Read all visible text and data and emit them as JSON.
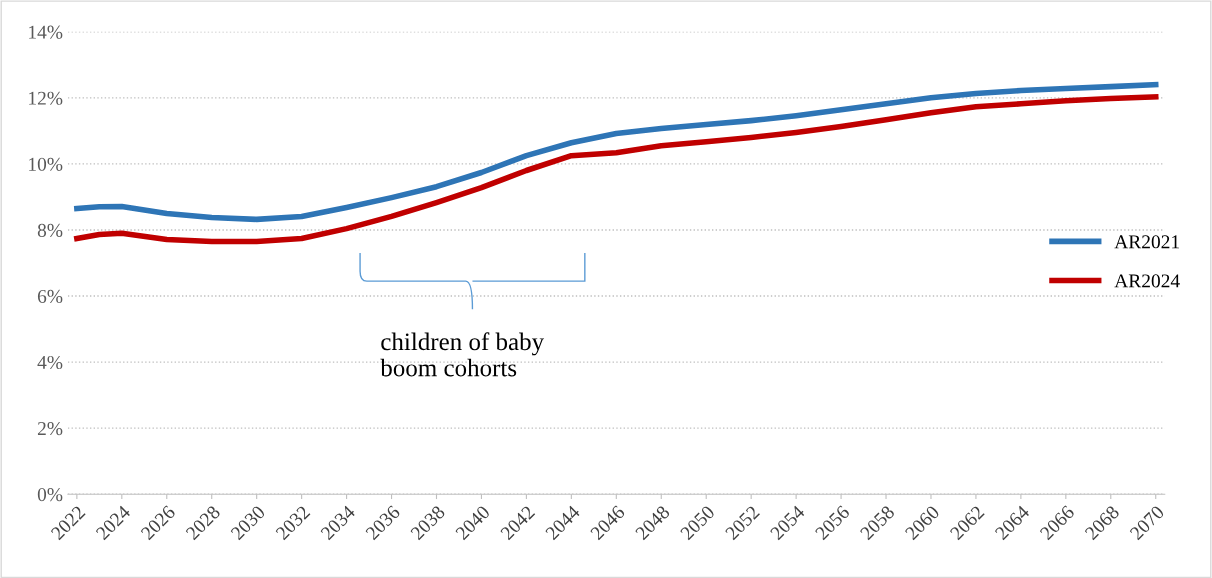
{
  "chart_data": {
    "type": "line",
    "x": [
      2022,
      2023,
      2024,
      2026,
      2028,
      2030,
      2032,
      2034,
      2036,
      2038,
      2040,
      2042,
      2044,
      2046,
      2048,
      2050,
      2052,
      2054,
      2056,
      2058,
      2060,
      2062,
      2064,
      2066,
      2068,
      2070
    ],
    "series": [
      {
        "name": "AR2021",
        "color": "#2e75b6",
        "values": [
          8.65,
          8.7,
          8.71,
          8.5,
          8.38,
          8.32,
          8.41,
          8.68,
          8.98,
          9.31,
          9.74,
          10.25,
          10.64,
          10.92,
          11.07,
          11.19,
          11.31,
          11.46,
          11.64,
          11.82,
          12.0,
          12.13,
          12.22,
          12.28,
          12.34,
          12.4
        ]
      },
      {
        "name": "AR2024",
        "color": "#c00000",
        "values": [
          7.74,
          7.86,
          7.9,
          7.71,
          7.65,
          7.65,
          7.74,
          8.04,
          8.41,
          8.83,
          9.28,
          9.8,
          10.25,
          10.34,
          10.55,
          10.67,
          10.8,
          10.95,
          11.13,
          11.34,
          11.55,
          11.73,
          11.82,
          11.91,
          11.98,
          12.03
        ]
      }
    ],
    "xlim": [
      2021.6,
      2070.4
    ],
    "xticks": [
      2022,
      2024,
      2026,
      2028,
      2030,
      2032,
      2034,
      2036,
      2038,
      2040,
      2042,
      2044,
      2046,
      2048,
      2050,
      2052,
      2054,
      2056,
      2058,
      2060,
      2062,
      2064,
      2066,
      2068,
      2070
    ],
    "ylim": [
      0,
      14
    ],
    "yticks": [
      {
        "value": 0,
        "label": "0%"
      },
      {
        "value": 2,
        "label": "2%"
      },
      {
        "value": 4,
        "label": "4%"
      },
      {
        "value": 6,
        "label": "6%"
      },
      {
        "value": 8,
        "label": "8%"
      },
      {
        "value": 10,
        "label": "10%"
      },
      {
        "value": 12,
        "label": "12%"
      },
      {
        "value": 14,
        "label": "14%"
      }
    ],
    "grid": "y",
    "legend": "right",
    "marker": "none",
    "line_style": "solid",
    "annotations": [
      "children of baby\nboom cohorts"
    ]
  }
}
